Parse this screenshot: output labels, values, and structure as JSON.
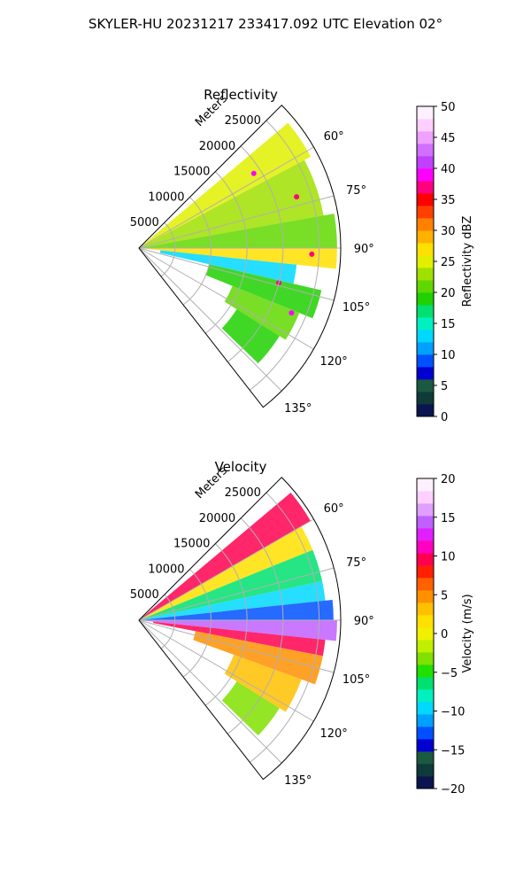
{
  "figure_title": "SKYLER-HU  20231217  233417.092 UTC Elevation 02°",
  "chart_data": [
    {
      "type": "polar-sector",
      "title": "Reflectivity",
      "radial_label": "Meters",
      "radial_ticks": [
        5000,
        10000,
        15000,
        20000,
        25000
      ],
      "radial_tick_labels": [
        "5000",
        "10000",
        "15000",
        "20000",
        "25000"
      ],
      "r_max": 28000,
      "angle_range_deg": [
        45,
        142
      ],
      "angle_ticks_deg": [
        60,
        75,
        90,
        105,
        120,
        135
      ],
      "angle_tick_labels": [
        "60°",
        "75°",
        "90°",
        "105°",
        "120°",
        "135°"
      ],
      "grid": true,
      "colorbar": {
        "label": "Reflectivity dBZ",
        "min": 0,
        "max": 50,
        "ticks": [
          0,
          5,
          10,
          15,
          20,
          25,
          30,
          35,
          40,
          45,
          50
        ],
        "tick_labels": [
          "0",
          "5",
          "10",
          "15",
          "20",
          "25",
          "30",
          "35",
          "40",
          "45",
          "50"
        ],
        "colors": [
          "#0a1550",
          "#0f3a3a",
          "#1a5a40",
          "#0000d0",
          "#0050ff",
          "#00a0ff",
          "#00d8ff",
          "#00f0c0",
          "#00e070",
          "#20d000",
          "#60d800",
          "#a0e000",
          "#e0f000",
          "#ffe000",
          "#ffb000",
          "#ff8000",
          "#ff4000",
          "#ff0000",
          "#ff0080",
          "#ff00ff",
          "#c040ff",
          "#d070ff",
          "#f0a0ff",
          "#ffd0ff",
          "#fff0ff"
        ]
      },
      "echo_regions": [
        {
          "theta": [
            50,
            62
          ],
          "r": [
            0,
            27000
          ],
          "value": 24
        },
        {
          "theta": [
            62,
            80
          ],
          "r": [
            0,
            26000
          ],
          "value": 22
        },
        {
          "theta": [
            80,
            90
          ],
          "r": [
            0,
            27500
          ],
          "value": 20
        },
        {
          "theta": [
            90,
            96
          ],
          "r": [
            0,
            27500
          ],
          "value": 26
        },
        {
          "theta": [
            96,
            103
          ],
          "r": [
            3000,
            22000
          ],
          "value": 13
        },
        {
          "theta": [
            103,
            112
          ],
          "r": [
            10000,
            26000
          ],
          "value": 18
        },
        {
          "theta": [
            112,
            122
          ],
          "r": [
            14000,
            24000
          ],
          "value": 20
        },
        {
          "theta": [
            122,
            134
          ],
          "r": [
            16000,
            23000
          ],
          "value": 19
        }
      ],
      "hot_spots": [
        {
          "theta": 57,
          "r": 19000,
          "value": 38
        },
        {
          "theta": 72,
          "r": 23000,
          "value": 36
        },
        {
          "theta": 92,
          "r": 24000,
          "value": 37
        },
        {
          "theta": 104,
          "r": 20000,
          "value": 37
        },
        {
          "theta": 113,
          "r": 23000,
          "value": 38
        }
      ]
    },
    {
      "type": "polar-sector",
      "title": "Velocity",
      "radial_label": "Meters",
      "radial_ticks": [
        5000,
        10000,
        15000,
        20000,
        25000
      ],
      "radial_tick_labels": [
        "5000",
        "10000",
        "15000",
        "20000",
        "25000"
      ],
      "r_max": 28000,
      "angle_range_deg": [
        45,
        142
      ],
      "angle_ticks_deg": [
        60,
        75,
        90,
        105,
        120,
        135
      ],
      "angle_tick_labels": [
        "60°",
        "75°",
        "90°",
        "105°",
        "120°",
        "135°"
      ],
      "grid": true,
      "colorbar": {
        "label": "Velocity (m/s)",
        "min": -20,
        "max": 20,
        "ticks": [
          -20,
          -15,
          -10,
          -5,
          0,
          5,
          10,
          15,
          20
        ],
        "tick_labels": [
          "−20",
          "−15",
          "−10",
          "−5",
          "0",
          "5",
          "10",
          "15",
          "20"
        ],
        "colors": [
          "#0a1550",
          "#0f3a3a",
          "#1a5a40",
          "#0000d0",
          "#0050ff",
          "#00a0ff",
          "#00d8ff",
          "#00f0c0",
          "#00e070",
          "#20e000",
          "#80e000",
          "#c0f000",
          "#f0f000",
          "#ffe000",
          "#ffc000",
          "#ff9000",
          "#ff6000",
          "#ff2000",
          "#ff0050",
          "#ff00c0",
          "#e020ff",
          "#c060ff",
          "#e0a0ff",
          "#ffd0ff",
          "#fff0ff"
        ]
      },
      "echo_regions": [
        {
          "theta": [
            50,
            60
          ],
          "r": [
            0,
            27500
          ],
          "value": 10
        },
        {
          "theta": [
            60,
            68
          ],
          "r": [
            0,
            26000
          ],
          "value": 2
        },
        {
          "theta": [
            68,
            78
          ],
          "r": [
            0,
            26000
          ],
          "value": -6
        },
        {
          "theta": [
            78,
            84
          ],
          "r": [
            0,
            26000
          ],
          "value": -9
        },
        {
          "theta": [
            84,
            90
          ],
          "r": [
            0,
            27000
          ],
          "value": -13
        },
        {
          "theta": [
            90,
            96
          ],
          "r": [
            0,
            27500
          ],
          "value": 14
        },
        {
          "theta": [
            96,
            101
          ],
          "r": [
            2000,
            26000
          ],
          "value": 10
        },
        {
          "theta": [
            101,
            110
          ],
          "r": [
            8000,
            26000
          ],
          "value": 4
        },
        {
          "theta": [
            110,
            122
          ],
          "r": [
            14000,
            24000
          ],
          "value": 3
        },
        {
          "theta": [
            122,
            134
          ],
          "r": [
            16000,
            23000
          ],
          "value": -3
        }
      ]
    }
  ]
}
